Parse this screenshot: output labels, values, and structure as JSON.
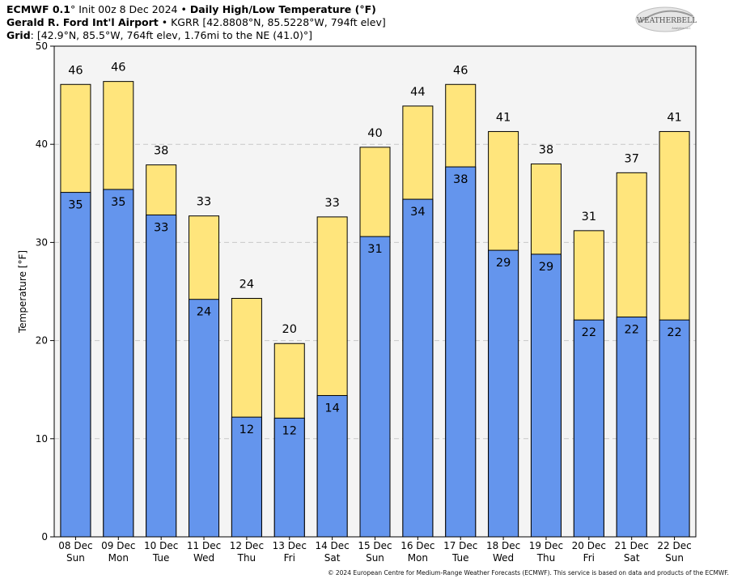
{
  "header": {
    "model": "ECMWF 0.1",
    "init_deg": "°",
    "init": "Init 00z 8 Dec 2024",
    "bullet": "•",
    "product": "Daily High/Low Temperature (°F)",
    "station_name": "Gerald R. Ford Int'l Airport",
    "station_details": "KGRR [42.8808°N, 85.5228°W, 794ft elev]",
    "grid_label": "Grid",
    "grid_details": ": [42.9°N, 85.5°W, 764ft elev, 1.76mi to the NE (41.0)°]"
  },
  "logo": {
    "text": "WEATHERBELL",
    "sub": "Analytics LLC"
  },
  "copyright": "© 2024 European Centre for Medium-Range Weather Forecasts (ECMWF). This service is based on data and products of the ECMWF.",
  "colors": {
    "high": "#ffe57c",
    "low": "#6495ed",
    "plot_bg": "#f4f4f4",
    "grid": "#c8c8c8"
  },
  "chart_data": {
    "type": "bar",
    "ylabel": "Temperature [°F]",
    "ylim": [
      0,
      50
    ],
    "yticks": [
      0,
      10,
      20,
      30,
      40,
      50
    ],
    "grid": true,
    "categories": [
      {
        "date": "08 Dec",
        "day": "Sun"
      },
      {
        "date": "09 Dec",
        "day": "Mon"
      },
      {
        "date": "10 Dec",
        "day": "Tue"
      },
      {
        "date": "11 Dec",
        "day": "Wed"
      },
      {
        "date": "12 Dec",
        "day": "Thu"
      },
      {
        "date": "13 Dec",
        "day": "Fri"
      },
      {
        "date": "14 Dec",
        "day": "Sat"
      },
      {
        "date": "15 Dec",
        "day": "Sun"
      },
      {
        "date": "16 Dec",
        "day": "Mon"
      },
      {
        "date": "17 Dec",
        "day": "Tue"
      },
      {
        "date": "18 Dec",
        "day": "Wed"
      },
      {
        "date": "19 Dec",
        "day": "Thu"
      },
      {
        "date": "20 Dec",
        "day": "Fri"
      },
      {
        "date": "21 Dec",
        "day": "Sat"
      },
      {
        "date": "22 Dec",
        "day": "Sun"
      }
    ],
    "series": [
      {
        "key": "high",
        "values": [
          46.1,
          46.4,
          37.9,
          32.7,
          24.3,
          19.7,
          32.6,
          39.7,
          43.9,
          46.1,
          41.3,
          38.0,
          31.2,
          37.1,
          41.3
        ],
        "labels": [
          "46",
          "46",
          "38",
          "33",
          "24",
          "20",
          "33",
          "40",
          "44",
          "46",
          "41",
          "38",
          "31",
          "37",
          "41"
        ]
      },
      {
        "key": "low",
        "values": [
          35.1,
          35.4,
          32.8,
          24.2,
          12.2,
          12.1,
          14.4,
          30.6,
          34.4,
          37.7,
          29.2,
          28.8,
          22.1,
          22.4,
          22.1
        ],
        "labels": [
          "35",
          "35",
          "33",
          "24",
          "12",
          "12",
          "14",
          "31",
          "34",
          "38",
          "29",
          "29",
          "22",
          "22",
          "22"
        ]
      }
    ]
  }
}
